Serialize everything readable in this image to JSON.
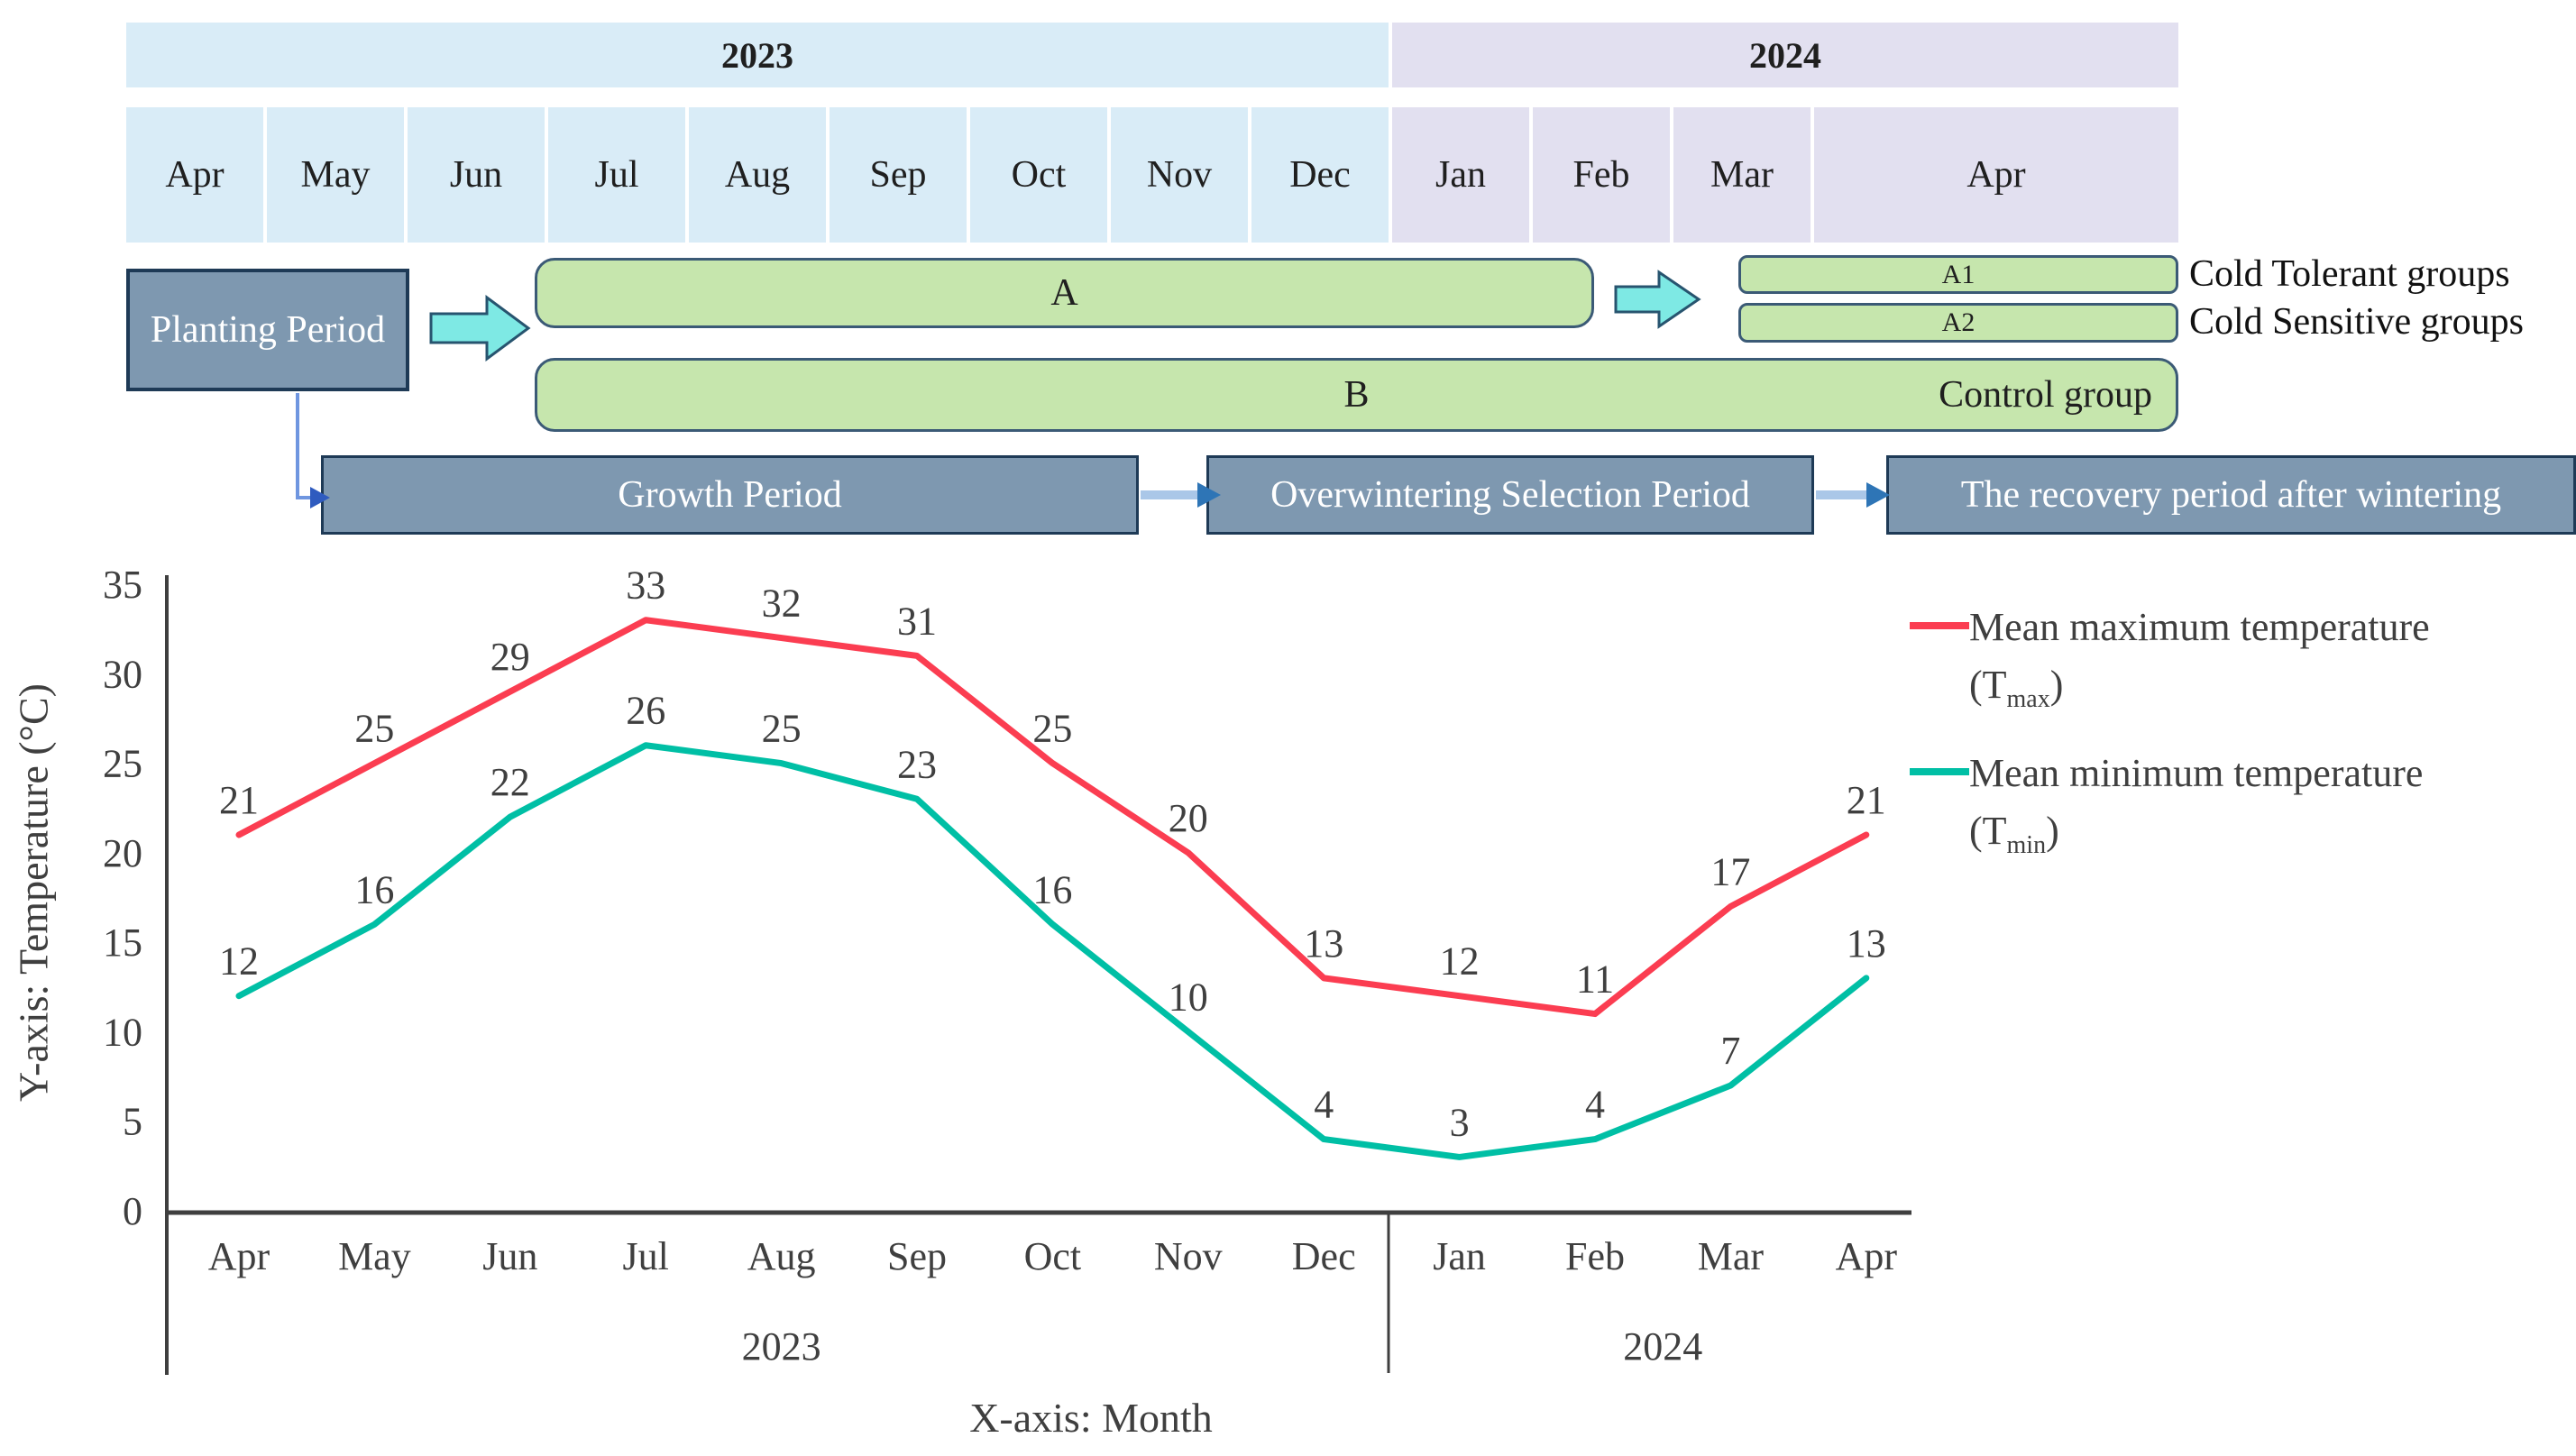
{
  "timeline": {
    "years": [
      {
        "label": "2023",
        "months": [
          "Apr",
          "May",
          "Jun",
          "Jul",
          "Aug",
          "Sep",
          "Oct",
          "Nov",
          "Dec"
        ]
      },
      {
        "label": "2024",
        "months": [
          "Jan",
          "Feb",
          "Mar",
          "Apr"
        ]
      }
    ]
  },
  "gantt": {
    "planting_label": "Planting Period",
    "bar_a_label": "A",
    "bar_a1_label": "A1",
    "bar_a2_label": "A2",
    "bar_b_label": "B",
    "control_group_label": "Control group",
    "cold_tolerant_label": "Cold Tolerant groups",
    "cold_sensitive_label": "Cold Sensitive groups",
    "period_growth": "Growth Period",
    "period_overwintering": "Overwintering Selection Period",
    "period_recovery": "The recovery period after wintering"
  },
  "legend": {
    "tmax": {
      "line1": "Mean maximum temperature",
      "prefix": "(T",
      "sub": "max",
      "suffix": ")"
    },
    "tmin": {
      "line1": "Mean minimum temperature",
      "prefix": "(T",
      "sub": "min",
      "suffix": ")"
    }
  },
  "chart_data": {
    "type": "line",
    "title": "",
    "xlabel": "X-axis: Month",
    "ylabel": "Y-axis: Temperature (°C)",
    "categories": [
      "Apr",
      "May",
      "Jun",
      "Jul",
      "Aug",
      "Sep",
      "Oct",
      "Nov",
      "Dec",
      "Jan",
      "Feb",
      "Mar",
      "Apr"
    ],
    "year_groups": [
      {
        "label": "2023",
        "from": 0,
        "to": 8
      },
      {
        "label": "2024",
        "from": 9,
        "to": 12
      }
    ],
    "y_ticks": [
      0,
      5,
      10,
      15,
      20,
      25,
      30,
      35
    ],
    "ylim": [
      0,
      35
    ],
    "grid": false,
    "legend_position": "right",
    "series": [
      {
        "name": "Mean maximum temperature (Tmax)",
        "color": "#fb3d51",
        "values": [
          21,
          25,
          29,
          33,
          32,
          31,
          25,
          20,
          13,
          12,
          11,
          17,
          21
        ]
      },
      {
        "name": "Mean minimum temperature (Tmin)",
        "color": "#00bfa5",
        "values": [
          12,
          16,
          22,
          26,
          25,
          23,
          16,
          10,
          4,
          3,
          4,
          7,
          13
        ]
      }
    ]
  },
  "colors": {
    "year2023_bg": "#d9ecf7",
    "year2024_bg": "#e2e0f0",
    "slate_fill": "#7e98b0",
    "slate_border": "#1e3a56",
    "green_fill": "#c6e6ad",
    "green_border": "#3b5a76",
    "cyan_arrow": "#7ee9e4",
    "cyan_arrow_border": "#27546f",
    "connector_blue": "#6f96e0",
    "connector_head": "#2f5bbf",
    "period_arrow": "#aac7e8",
    "period_arrow_head": "#2e75b6",
    "tmax_line": "#fb3d51",
    "tmin_line": "#00bfa5",
    "axis": "#3f3f3f"
  }
}
